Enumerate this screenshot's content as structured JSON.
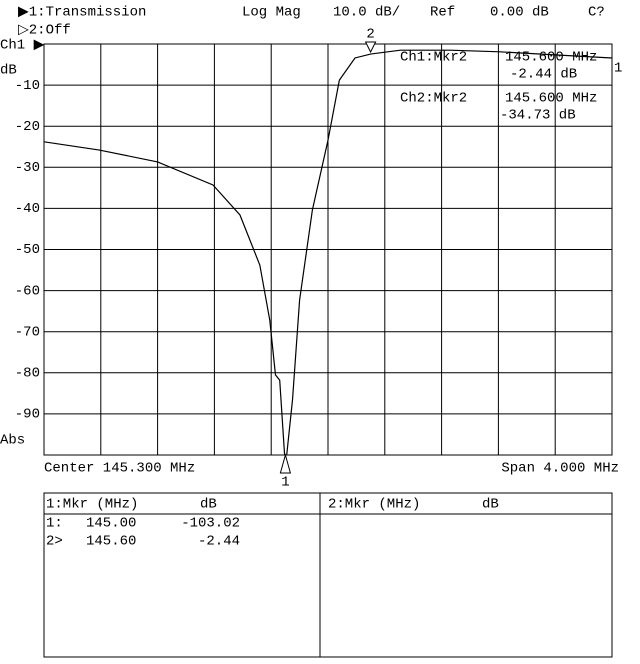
{
  "header": {
    "ch1_trace": "▶1:Transmission",
    "ch2_trace": "▷2:Off",
    "format": "Log Mag",
    "scale": "10.0 dB/",
    "ref": "Ref",
    "ref_value": "0.00 dB",
    "status": "C?"
  },
  "chart_data": {
    "type": "line",
    "channel_label": "Ch1 ▶",
    "y_unit": "dB",
    "y_mode": "Abs",
    "x_left_label": "Center 145.300 MHz",
    "x_right_label": "Span 4.000 MHz",
    "x": [
      143.3,
      143.69,
      144.1,
      144.49,
      144.68,
      144.82,
      144.89,
      144.93,
      144.96,
      145.0,
      145.05,
      145.1,
      145.19,
      145.3,
      145.38,
      145.49,
      145.6,
      145.81,
      146.16,
      146.51,
      146.93,
      147.3
    ],
    "series": [
      {
        "name": "Transmission",
        "color": "#000000",
        "values": [
          -23.8,
          -25.8,
          -28.7,
          -34.3,
          -41.6,
          -53.8,
          -67.2,
          -80.5,
          -81.8,
          -103.02,
          -86.6,
          -62.3,
          -40.4,
          -23.4,
          -8.8,
          -3.4,
          -2.44,
          -1.5,
          -1.5,
          -1.9,
          -2.7,
          -3.4
        ]
      }
    ],
    "xlim": [
      143.3,
      147.3
    ],
    "xticks": [
      143.7,
      144.1,
      144.5,
      144.9,
      145.3,
      145.7,
      146.1,
      146.5,
      146.9
    ],
    "ylim": [
      -100,
      0
    ],
    "yticks": [
      -90,
      -80,
      -70,
      -60,
      -50,
      -40,
      -30,
      -20,
      -10
    ],
    "grid": true,
    "markers": [
      {
        "label": "1",
        "x": 145.0,
        "y": -103.02,
        "side": "bottom"
      },
      {
        "label": "2",
        "x": 145.6,
        "y": -2.44,
        "side": "top"
      }
    ],
    "trace_end_label": "1",
    "readouts": [
      {
        "name": "Ch1:Mkr2",
        "freq": "145.600 MHz",
        "value": "-2.44 dB"
      },
      {
        "name": "Ch2:Mkr2",
        "freq": "145.600 MHz",
        "value": "-34.73 dB"
      }
    ]
  },
  "marker_table": {
    "left": {
      "header": [
        "1:Mkr (MHz)",
        "dB"
      ],
      "rows": [
        [
          "1:",
          "145.00",
          "-103.02"
        ],
        [
          "2>",
          "145.60",
          "-2.44"
        ]
      ]
    },
    "right": {
      "header": [
        "2:Mkr (MHz)",
        "dB"
      ]
    }
  }
}
